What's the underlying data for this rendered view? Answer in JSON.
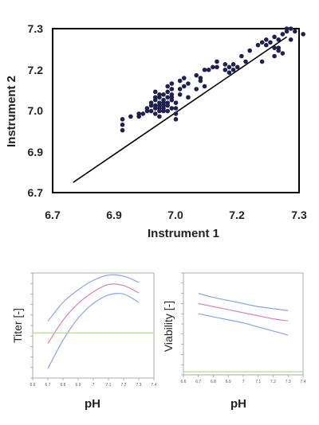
{
  "chart_data": [
    {
      "type": "scatter",
      "title": "",
      "xlabel": "Instrument 1",
      "ylabel": "Instrument 2",
      "x_ticks": [
        "6.7",
        "6.9",
        "7.0",
        "7.2",
        "7.3"
      ],
      "y_ticks": [
        "7.3",
        "7.2",
        "7.0",
        "6.9",
        "6.7"
      ],
      "grid": false,
      "point_color": "#1f2050",
      "reference_line": {
        "x": [
          6.75,
          7.27
        ],
        "y": [
          6.74,
          7.27
        ],
        "color": "#000000"
      },
      "points": [
        [
          6.87,
          6.97
        ],
        [
          6.87,
          6.95
        ],
        [
          6.87,
          6.93
        ],
        [
          6.89,
          6.98
        ],
        [
          6.91,
          6.98
        ],
        [
          6.91,
          6.99
        ],
        [
          6.92,
          6.99
        ],
        [
          6.93,
          7.0
        ],
        [
          6.93,
          7.01
        ],
        [
          6.94,
          7.0
        ],
        [
          6.94,
          7.02
        ],
        [
          6.94,
          7.03
        ],
        [
          6.95,
          6.99
        ],
        [
          6.95,
          7.01
        ],
        [
          6.95,
          7.02
        ],
        [
          6.95,
          7.04
        ],
        [
          6.95,
          7.05
        ],
        [
          6.95,
          7.07
        ],
        [
          6.96,
          7.0
        ],
        [
          6.96,
          7.02
        ],
        [
          6.96,
          7.03
        ],
        [
          6.96,
          7.05
        ],
        [
          6.96,
          7.06
        ],
        [
          6.96,
          6.98
        ],
        [
          6.97,
          7.01
        ],
        [
          6.97,
          7.02
        ],
        [
          6.97,
          7.04
        ],
        [
          6.97,
          7.06
        ],
        [
          6.97,
          7.03
        ],
        [
          6.98,
          7.0
        ],
        [
          6.98,
          7.02
        ],
        [
          6.98,
          7.05
        ],
        [
          6.98,
          7.07
        ],
        [
          6.98,
          7.03
        ],
        [
          6.99,
          7.04
        ],
        [
          6.99,
          7.06
        ],
        [
          6.99,
          7.08
        ],
        [
          6.99,
          7.01
        ],
        [
          6.97,
          7.0
        ],
        [
          6.96,
          7.01
        ],
        [
          6.99,
          7.05
        ],
        [
          7.0,
          7.03
        ],
        [
          7.0,
          6.99
        ],
        [
          7.0,
          6.97
        ],
        [
          7.0,
          7.01
        ],
        [
          7.01,
          7.08
        ],
        [
          7.01,
          7.06
        ],
        [
          7.02,
          7.09
        ],
        [
          7.02,
          7.12
        ],
        [
          7.03,
          7.1
        ],
        [
          7.05,
          7.13
        ],
        [
          7.06,
          7.12
        ],
        [
          7.07,
          7.15
        ],
        [
          7.08,
          7.15
        ],
        [
          7.09,
          7.16
        ],
        [
          7.1,
          7.16
        ],
        [
          7.12,
          7.15
        ],
        [
          7.12,
          7.17
        ],
        [
          7.13,
          7.16
        ],
        [
          7.14,
          7.17
        ],
        [
          7.15,
          7.16
        ],
        [
          7.14,
          7.15
        ],
        [
          7.13,
          7.14
        ],
        [
          7.16,
          7.2
        ],
        [
          7.17,
          7.18
        ],
        [
          7.18,
          7.22
        ],
        [
          7.2,
          7.24
        ],
        [
          7.21,
          7.25
        ],
        [
          7.22,
          7.24
        ],
        [
          7.22,
          7.26
        ],
        [
          7.23,
          7.25
        ],
        [
          7.24,
          7.27
        ],
        [
          7.24,
          7.23
        ],
        [
          7.25,
          7.26
        ],
        [
          7.25,
          7.22
        ],
        [
          7.26,
          7.28
        ],
        [
          7.27,
          7.29
        ],
        [
          7.27,
          7.3
        ],
        [
          7.28,
          7.3
        ],
        [
          7.29,
          7.29
        ],
        [
          7.31,
          7.28
        ],
        [
          7.26,
          7.21
        ],
        [
          7.21,
          7.18
        ],
        [
          7.24,
          7.2
        ],
        [
          7.25,
          7.23
        ],
        [
          7.28,
          7.26
        ],
        [
          7.03,
          7.05
        ],
        [
          6.99,
          7.1
        ],
        [
          7.01,
          7.11
        ],
        [
          7.05,
          7.08
        ],
        [
          7.06,
          7.11
        ],
        [
          6.98,
          7.09
        ],
        [
          7.07,
          7.09
        ],
        [
          7.1,
          7.18
        ]
      ]
    },
    {
      "type": "line",
      "xlabel": "pH",
      "ylabel": "Titer [-]",
      "x_ticks": [
        "6.6",
        "6.7",
        "6.8",
        "6.9",
        "7",
        "7.1",
        "7.2",
        "7.3",
        "7.4"
      ],
      "xlim": [
        6.6,
        7.4
      ],
      "ylim": [
        0,
        1
      ],
      "series": [
        {
          "color": "#8fa3e6",
          "x": [
            6.7,
            6.8,
            6.9,
            7.0,
            7.1,
            7.2,
            7.3
          ],
          "values": [
            0.54,
            0.72,
            0.84,
            0.93,
            0.98,
            0.97,
            0.91
          ]
        },
        {
          "color": "#e080b0",
          "x": [
            6.7,
            6.8,
            6.9,
            7.0,
            7.1,
            7.2,
            7.3
          ],
          "values": [
            0.33,
            0.55,
            0.71,
            0.82,
            0.89,
            0.88,
            0.81
          ]
        },
        {
          "color": "#8fa3e6",
          "x": [
            6.7,
            6.8,
            6.9,
            7.0,
            7.1,
            7.2,
            7.3
          ],
          "values": [
            0.09,
            0.36,
            0.57,
            0.71,
            0.79,
            0.8,
            0.72
          ]
        },
        {
          "color": "#a8e08a",
          "x": [
            6.6,
            7.4
          ],
          "values": [
            0.43,
            0.43
          ]
        }
      ]
    },
    {
      "type": "line",
      "xlabel": "pH",
      "ylabel": "Viability [-]",
      "x_ticks": [
        "6.6",
        "6.7",
        "6.8",
        "6.9",
        "7",
        "7.1",
        "7.2",
        "7.3",
        "7.4"
      ],
      "xlim": [
        6.6,
        7.4
      ],
      "ylim": [
        0,
        1
      ],
      "series": [
        {
          "color": "#8fa3e6",
          "x": [
            6.7,
            6.8,
            6.9,
            7.0,
            7.1,
            7.2,
            7.3
          ],
          "values": [
            0.8,
            0.76,
            0.73,
            0.7,
            0.67,
            0.65,
            0.63
          ]
        },
        {
          "color": "#e080b0",
          "x": [
            6.7,
            6.8,
            6.9,
            7.0,
            7.1,
            7.2,
            7.3
          ],
          "values": [
            0.7,
            0.67,
            0.64,
            0.61,
            0.58,
            0.55,
            0.53
          ]
        },
        {
          "color": "#8fa3e6",
          "x": [
            6.7,
            6.8,
            6.9,
            7.0,
            7.1,
            7.2,
            7.3
          ],
          "values": [
            0.6,
            0.57,
            0.54,
            0.51,
            0.47,
            0.43,
            0.39
          ]
        },
        {
          "color": "#a8e08a",
          "x": [
            6.6,
            7.4
          ],
          "values": [
            0.03,
            0.03
          ]
        }
      ]
    }
  ]
}
